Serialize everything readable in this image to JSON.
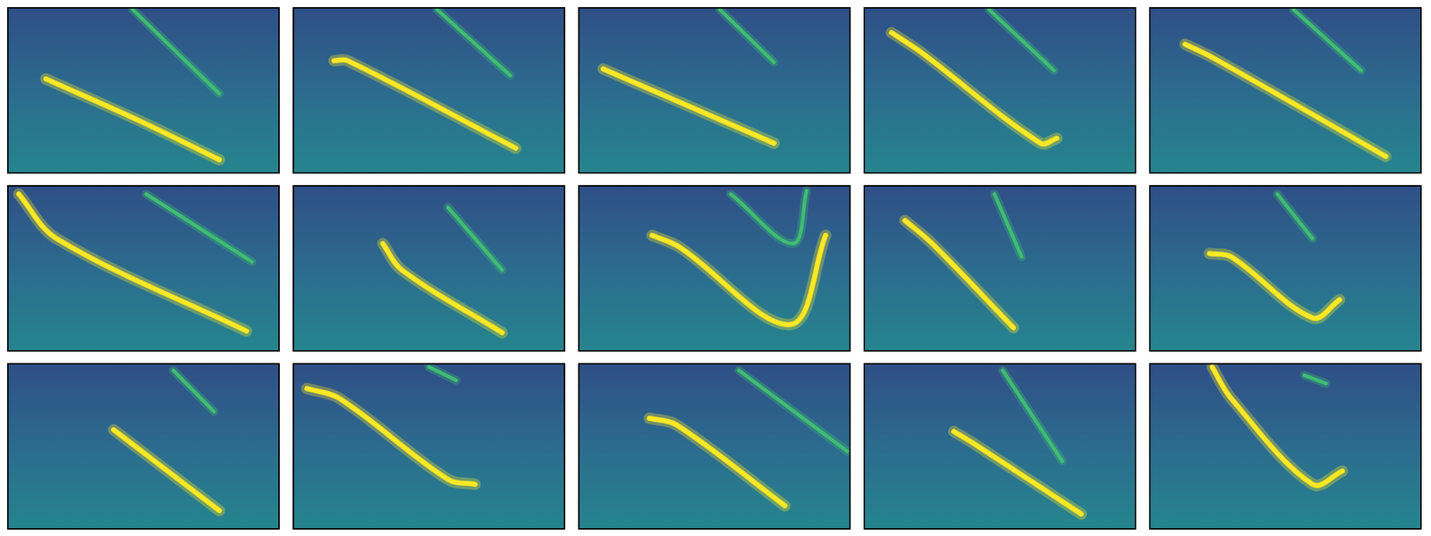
{
  "chart_data": [
    {
      "type": "line",
      "xlim": [
        0,
        100
      ],
      "ylim": [
        0,
        100
      ],
      "grid": false,
      "tick_labels": false,
      "series": [
        {
          "color": "#fde725",
          "x": [
            14,
            48,
            78
          ],
          "values": [
            57,
            32,
            8
          ]
        },
        {
          "color": "#3fbc73",
          "x": [
            46,
            78
          ],
          "values": [
            99,
            48
          ]
        }
      ]
    },
    {
      "type": "line",
      "xlim": [
        0,
        100
      ],
      "ylim": [
        0,
        100
      ],
      "grid": false,
      "tick_labels": false,
      "series": [
        {
          "color": "#fde725",
          "x": [
            15,
            20,
            82
          ],
          "values": [
            68,
            68,
            15
          ]
        },
        {
          "color": "#3fbc73",
          "x": [
            53,
            80
          ],
          "values": [
            99,
            59
          ]
        }
      ]
    },
    {
      "type": "line",
      "xlim": [
        0,
        100
      ],
      "ylim": [
        0,
        100
      ],
      "grid": false,
      "tick_labels": false,
      "series": [
        {
          "color": "#fde725",
          "x": [
            9,
            72
          ],
          "values": [
            63,
            18
          ]
        },
        {
          "color": "#3fbc73",
          "x": [
            52,
            72
          ],
          "values": [
            99,
            67
          ]
        }
      ]
    },
    {
      "type": "line",
      "xlim": [
        0,
        100
      ],
      "ylim": [
        0,
        100
      ],
      "grid": false,
      "tick_labels": false,
      "series": [
        {
          "color": "#fde725",
          "x": [
            10,
            21,
            65,
            71
          ],
          "values": [
            85,
            73,
            18,
            21
          ]
        },
        {
          "color": "#3fbc73",
          "x": [
            46,
            70
          ],
          "values": [
            99,
            62
          ]
        }
      ]
    },
    {
      "type": "line",
      "xlim": [
        0,
        100
      ],
      "ylim": [
        0,
        100
      ],
      "grid": false,
      "tick_labels": false,
      "series": [
        {
          "color": "#fde725",
          "x": [
            13,
            23,
            87
          ],
          "values": [
            78,
            70,
            10
          ]
        },
        {
          "color": "#3fbc73",
          "x": [
            53,
            78
          ],
          "values": [
            99,
            62
          ]
        }
      ]
    },
    {
      "type": "line",
      "xlim": [
        0,
        100
      ],
      "ylim": [
        0,
        100
      ],
      "grid": false,
      "tick_labels": false,
      "series": [
        {
          "color": "#fde725",
          "x": [
            4,
            18,
            88
          ],
          "values": [
            95,
            68,
            12
          ]
        },
        {
          "color": "#3fbc73",
          "x": [
            51,
            90
          ],
          "values": [
            95,
            54
          ]
        }
      ]
    },
    {
      "type": "line",
      "xlim": [
        0,
        100
      ],
      "ylim": [
        0,
        100
      ],
      "grid": false,
      "tick_labels": false,
      "series": [
        {
          "color": "#fde725",
          "x": [
            33,
            40,
            77
          ],
          "values": [
            65,
            49,
            11
          ]
        },
        {
          "color": "#3fbc73",
          "x": [
            57,
            77
          ],
          "values": [
            87,
            49
          ]
        }
      ]
    },
    {
      "type": "line",
      "xlim": [
        0,
        100
      ],
      "ylim": [
        0,
        100
      ],
      "grid": false,
      "tick_labels": false,
      "series": [
        {
          "color": "#fde725",
          "x": [
            27,
            37,
            78,
            91
          ],
          "values": [
            70,
            63,
            16,
            70
          ]
        },
        {
          "color": "#3fbc73",
          "x": [
            56,
            79,
            84
          ],
          "values": [
            95,
            65,
            97
          ]
        }
      ]
    },
    {
      "type": "line",
      "xlim": [
        0,
        100
      ],
      "ylim": [
        0,
        100
      ],
      "grid": false,
      "tick_labels": false,
      "series": [
        {
          "color": "#fde725",
          "x": [
            15,
            25,
            55
          ],
          "values": [
            79,
            65,
            14
          ]
        },
        {
          "color": "#3fbc73",
          "x": [
            48,
            58
          ],
          "values": [
            95,
            57
          ]
        }
      ]
    },
    {
      "type": "line",
      "xlim": [
        0,
        100
      ],
      "ylim": [
        0,
        100
      ],
      "grid": false,
      "tick_labels": false,
      "series": [
        {
          "color": "#fde725",
          "x": [
            22,
            30,
            60,
            70
          ],
          "values": [
            59,
            57,
            20,
            31
          ]
        },
        {
          "color": "#3fbc73",
          "x": [
            47,
            60
          ],
          "values": [
            95,
            68
          ]
        }
      ]
    },
    {
      "type": "line",
      "xlim": [
        0,
        100
      ],
      "ylim": [
        0,
        100
      ],
      "grid": false,
      "tick_labels": false,
      "series": [
        {
          "color": "#fde725",
          "x": [
            39,
            78
          ],
          "values": [
            60,
            11
          ]
        },
        {
          "color": "#3fbc73",
          "x": [
            61,
            76
          ],
          "values": [
            96,
            71
          ]
        }
      ]
    },
    {
      "type": "line",
      "xlim": [
        0,
        100
      ],
      "ylim": [
        0,
        100
      ],
      "grid": false,
      "tick_labels": false,
      "series": [
        {
          "color": "#fde725",
          "x": [
            5,
            17,
            57,
            67
          ],
          "values": [
            85,
            79,
            30,
            27
          ]
        },
        {
          "color": "#3fbc73",
          "x": [
            50,
            60
          ],
          "values": [
            98,
            90
          ]
        }
      ]
    },
    {
      "type": "line",
      "xlim": [
        0,
        100
      ],
      "ylim": [
        0,
        100
      ],
      "grid": false,
      "tick_labels": false,
      "series": [
        {
          "color": "#fde725",
          "x": [
            26,
            36,
            76
          ],
          "values": [
            67,
            63,
            14
          ]
        },
        {
          "color": "#3fbc73",
          "x": [
            59,
            99
          ],
          "values": [
            96,
            47
          ]
        }
      ]
    },
    {
      "type": "line",
      "xlim": [
        0,
        100
      ],
      "ylim": [
        0,
        100
      ],
      "grid": false,
      "tick_labels": false,
      "series": [
        {
          "color": "#fde725",
          "x": [
            33,
            41,
            80
          ],
          "values": [
            59,
            51,
            9
          ]
        },
        {
          "color": "#3fbc73",
          "x": [
            51,
            73
          ],
          "values": [
            96,
            41
          ]
        }
      ]
    },
    {
      "type": "line",
      "xlim": [
        0,
        100
      ],
      "ylim": [
        0,
        100
      ],
      "grid": false,
      "tick_labels": false,
      "series": [
        {
          "color": "#fde725",
          "x": [
            23,
            30,
            60,
            71
          ],
          "values": [
            98,
            79,
            27,
            35
          ]
        },
        {
          "color": "#3fbc73",
          "x": [
            57,
            65
          ],
          "values": [
            93,
            88
          ]
        }
      ]
    }
  ]
}
